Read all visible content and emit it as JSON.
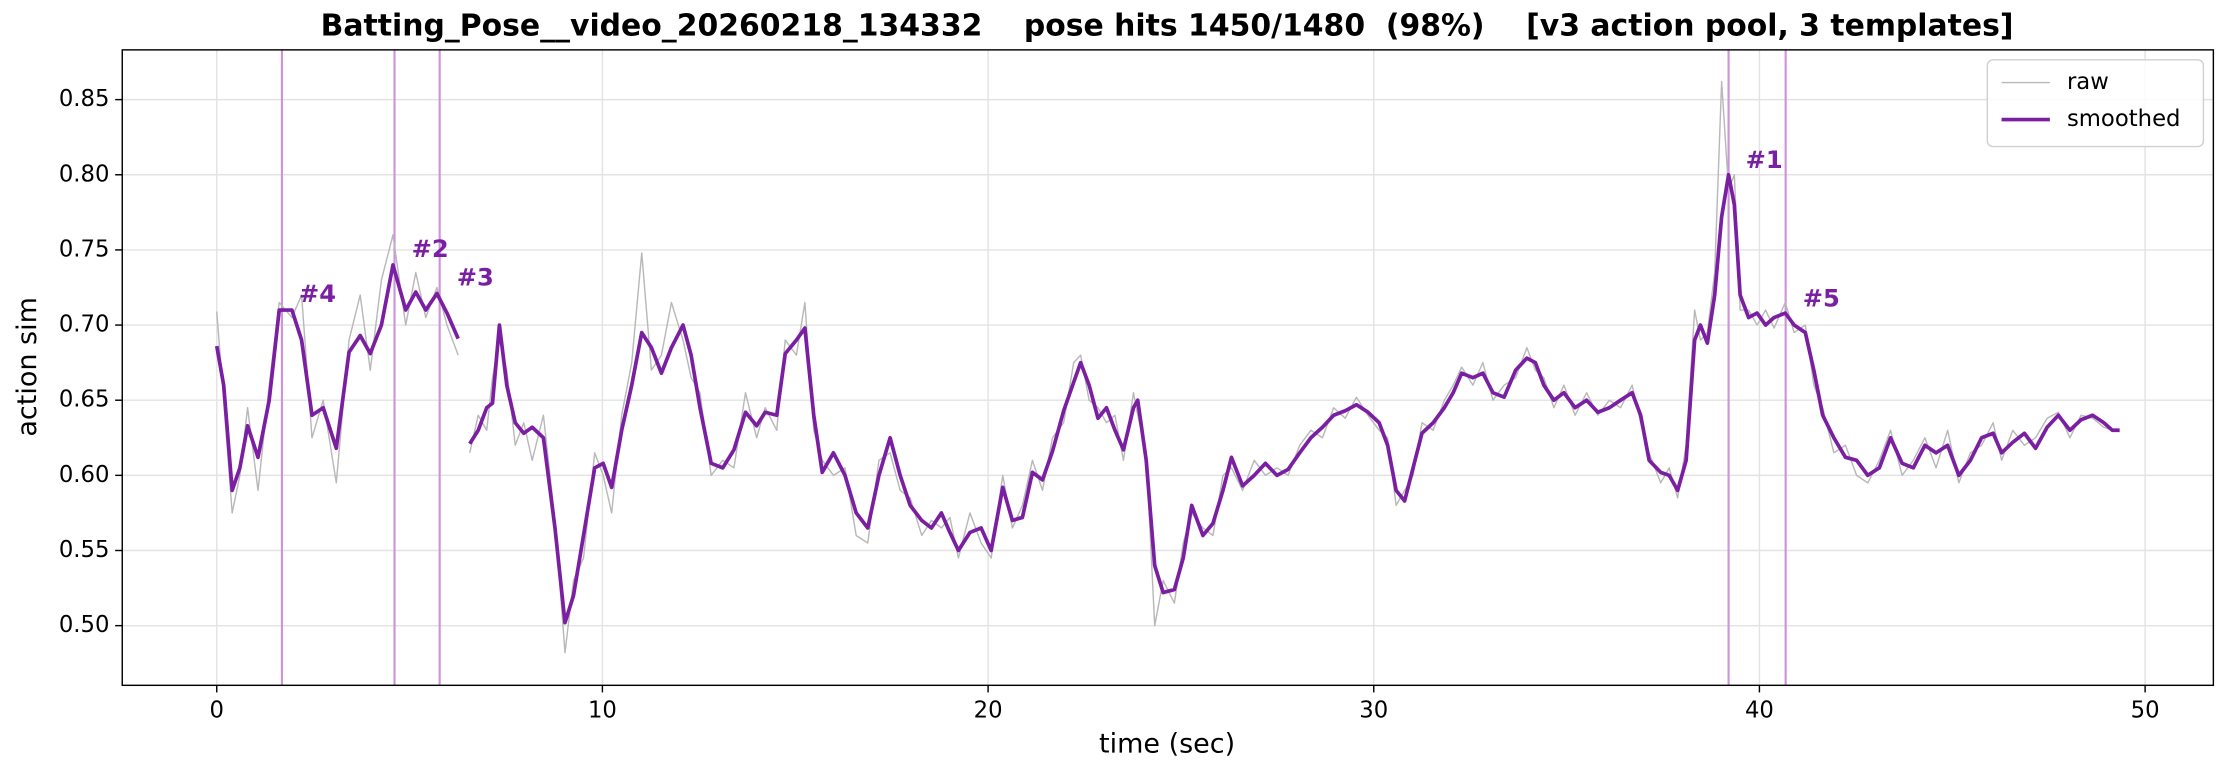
{
  "chart_data": {
    "type": "line",
    "title": "Batting_Pose__video_20260218_134332    pose hits 1450/1480  (98%)    [v3 action pool, 3 templates]",
    "xlabel": "time (sec)",
    "ylabel": "action sim",
    "xlim": [
      -2.45,
      51.77
    ],
    "ylim": [
      0.4603,
      0.8831
    ],
    "xticks": [
      0,
      10,
      20,
      30,
      40,
      50
    ],
    "yticks": [
      {
        "value": 0.5,
        "label": "0.50"
      },
      0.55,
      {
        "value": 0.6,
        "label": "0.60"
      },
      0.65,
      {
        "value": 0.7,
        "label": "0.70"
      },
      0.75,
      {
        "value": 0.8,
        "label": "0.80"
      },
      0.85
    ],
    "grid": true,
    "legend": "upper right",
    "x": [
      0,
      0.18,
      0.4,
      0.6,
      0.8,
      1.07,
      1.36,
      1.62,
      1.95,
      2.2,
      2.47,
      2.76,
      3.1,
      3.43,
      3.72,
      3.98,
      4.27,
      4.57,
      4.9,
      5.16,
      5.42,
      5.71,
      5.97,
      6.26,
      6.4,
      6.56,
      6.78,
      7.0,
      7.15,
      7.33,
      7.52,
      7.74,
      7.96,
      8.18,
      8.47,
      8.77,
      9.03,
      9.25,
      9.51,
      9.8,
      10.02,
      10.24,
      10.5,
      10.76,
      11.02,
      11.27,
      11.53,
      11.79,
      12.09,
      12.3,
      12.53,
      12.82,
      13.12,
      13.41,
      13.71,
      14.0,
      14.22,
      14.52,
      14.74,
      15.03,
      15.25,
      15.48,
      15.7,
      15.99,
      16.29,
      16.58,
      16.88,
      17.17,
      17.46,
      17.72,
      17.98,
      18.28,
      18.53,
      18.79,
      19.01,
      19.23,
      19.53,
      19.82,
      20.08,
      20.38,
      20.63,
      20.89,
      21.15,
      21.41,
      21.67,
      21.96,
      22.22,
      22.4,
      22.62,
      22.85,
      23.07,
      23.29,
      23.51,
      23.77,
      23.88,
      24.1,
      24.32,
      24.54,
      24.83,
      25.06,
      25.28,
      25.57,
      25.83,
      26.09,
      26.31,
      26.6,
      26.9,
      27.19,
      27.49,
      27.78,
      28.08,
      28.37,
      28.67,
      28.96,
      29.26,
      29.55,
      29.85,
      30.14,
      30.36,
      30.58,
      30.8,
      31.02,
      31.25,
      31.54,
      31.83,
      32.06,
      32.28,
      32.57,
      32.83,
      33.09,
      33.38,
      33.68,
      33.97,
      34.19,
      34.41,
      34.67,
      34.93,
      35.22,
      35.52,
      35.81,
      36.11,
      36.4,
      36.7,
      36.92,
      37.14,
      37.44,
      37.66,
      37.88,
      38.1,
      38.32,
      38.47,
      38.65,
      38.84,
      39.02,
      39.2,
      39.35,
      39.5,
      39.72,
      39.94,
      40.16,
      40.38,
      40.67,
      40.9,
      41.19,
      41.41,
      41.64,
      41.93,
      42.23,
      42.52,
      42.81,
      43.11,
      43.4,
      43.7,
      43.99,
      44.29,
      44.58,
      44.88,
      45.17,
      45.47,
      45.76,
      46.06,
      46.28,
      46.57,
      46.87,
      47.16,
      47.46,
      47.75,
      48.05,
      48.34,
      48.64,
      48.93,
      49.15,
      49.34
    ],
    "series": [
      {
        "name": "raw",
        "color": "#b8b8b8",
        "width": 1,
        "values": [
          0.709,
          0.65,
          0.575,
          0.6,
          0.645,
          0.59,
          0.66,
          0.715,
          0.705,
          0.72,
          0.625,
          0.65,
          0.595,
          0.69,
          0.72,
          0.67,
          0.73,
          0.76,
          0.7,
          0.735,
          0.705,
          0.725,
          0.7,
          0.68,
          null,
          0.615,
          0.64,
          0.63,
          0.665,
          0.69,
          0.67,
          0.62,
          0.635,
          0.61,
          0.64,
          0.57,
          0.482,
          0.53,
          0.545,
          0.615,
          0.6,
          0.575,
          0.64,
          0.675,
          0.748,
          0.67,
          0.68,
          0.715,
          0.69,
          0.665,
          0.655,
          0.6,
          0.61,
          0.605,
          0.655,
          0.625,
          0.645,
          0.63,
          0.69,
          0.68,
          0.715,
          0.63,
          0.61,
          0.6,
          0.605,
          0.56,
          0.555,
          0.61,
          0.615,
          0.59,
          0.585,
          0.56,
          0.57,
          0.565,
          0.572,
          0.545,
          0.575,
          0.555,
          0.545,
          0.6,
          0.565,
          0.58,
          0.61,
          0.59,
          0.625,
          0.635,
          0.675,
          0.68,
          0.65,
          0.645,
          0.635,
          0.64,
          0.61,
          0.655,
          0.64,
          0.615,
          0.5,
          0.53,
          0.515,
          0.555,
          0.575,
          0.565,
          0.56,
          0.6,
          0.605,
          0.59,
          0.61,
          0.6,
          0.605,
          0.6,
          0.62,
          0.63,
          0.625,
          0.645,
          0.638,
          0.652,
          0.64,
          0.63,
          0.625,
          0.58,
          0.59,
          0.6,
          0.635,
          0.63,
          0.65,
          0.66,
          0.672,
          0.66,
          0.675,
          0.65,
          0.66,
          0.665,
          0.685,
          0.67,
          0.665,
          0.645,
          0.66,
          0.64,
          0.655,
          0.64,
          0.65,
          0.645,
          0.66,
          0.635,
          0.615,
          0.595,
          0.605,
          0.585,
          0.62,
          0.71,
          0.69,
          0.695,
          0.735,
          0.862,
          0.79,
          0.8,
          0.71,
          0.71,
          0.7,
          0.71,
          0.698,
          0.715,
          0.695,
          0.7,
          0.66,
          0.645,
          0.615,
          0.62,
          0.6,
          0.595,
          0.61,
          0.63,
          0.6,
          0.61,
          0.625,
          0.605,
          0.63,
          0.595,
          0.615,
          0.62,
          0.635,
          0.61,
          0.63,
          0.62,
          0.625,
          0.638,
          0.642,
          0.625,
          0.64,
          0.638,
          0.632,
          0.63,
          0.63
        ]
      },
      {
        "name": "smoothed",
        "color": "#7b1fa2",
        "width": 2.6,
        "values": [
          0.686,
          0.66,
          0.59,
          0.605,
          0.633,
          0.612,
          0.65,
          0.71,
          0.71,
          0.69,
          0.64,
          0.645,
          0.618,
          0.682,
          0.693,
          0.681,
          0.7,
          0.74,
          0.71,
          0.722,
          0.71,
          0.721,
          0.708,
          0.691,
          null,
          0.621,
          0.63,
          0.645,
          0.648,
          0.7,
          0.66,
          0.635,
          0.628,
          0.632,
          0.625,
          0.565,
          0.502,
          0.52,
          0.56,
          0.605,
          0.608,
          0.592,
          0.63,
          0.66,
          0.695,
          0.685,
          0.668,
          0.685,
          0.7,
          0.68,
          0.645,
          0.608,
          0.605,
          0.617,
          0.642,
          0.633,
          0.642,
          0.64,
          0.681,
          0.69,
          0.698,
          0.64,
          0.602,
          0.615,
          0.6,
          0.575,
          0.565,
          0.6,
          0.625,
          0.6,
          0.58,
          0.57,
          0.565,
          0.575,
          0.562,
          0.55,
          0.562,
          0.565,
          0.55,
          0.592,
          0.57,
          0.572,
          0.602,
          0.597,
          0.616,
          0.643,
          0.662,
          0.675,
          0.66,
          0.638,
          0.645,
          0.63,
          0.617,
          0.645,
          0.65,
          0.61,
          0.54,
          0.522,
          0.524,
          0.545,
          0.58,
          0.56,
          0.568,
          0.59,
          0.612,
          0.593,
          0.6,
          0.608,
          0.6,
          0.604,
          0.615,
          0.625,
          0.632,
          0.64,
          0.643,
          0.647,
          0.642,
          0.635,
          0.62,
          0.59,
          0.583,
          0.605,
          0.628,
          0.635,
          0.645,
          0.655,
          0.668,
          0.665,
          0.668,
          0.655,
          0.652,
          0.67,
          0.678,
          0.675,
          0.66,
          0.65,
          0.655,
          0.645,
          0.65,
          0.642,
          0.645,
          0.65,
          0.655,
          0.64,
          0.61,
          0.602,
          0.6,
          0.59,
          0.61,
          0.69,
          0.7,
          0.688,
          0.72,
          0.772,
          0.8,
          0.78,
          0.72,
          0.705,
          0.708,
          0.7,
          0.705,
          0.708,
          0.7,
          0.695,
          0.67,
          0.64,
          0.625,
          0.612,
          0.61,
          0.6,
          0.605,
          0.625,
          0.608,
          0.605,
          0.62,
          0.615,
          0.62,
          0.6,
          0.61,
          0.625,
          0.628,
          0.615,
          0.622,
          0.628,
          0.618,
          0.632,
          0.64,
          0.63,
          0.637,
          0.64,
          0.635,
          0.63,
          0.63
        ]
      }
    ],
    "markers_color": "#ce93d8",
    "annotations": [
      {
        "text": "#1",
        "x": 39.2,
        "y": 0.809
      },
      {
        "text": "#2",
        "x": 4.61,
        "y": 0.75
      },
      {
        "text": "#3",
        "x": 5.78,
        "y": 0.731
      },
      {
        "text": "#4",
        "x": 1.69,
        "y": 0.72
      },
      {
        "text": "#5",
        "x": 40.68,
        "y": 0.717
      }
    ]
  }
}
